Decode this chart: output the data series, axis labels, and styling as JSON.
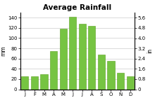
{
  "title": "Average Rainfall",
  "months": [
    "J",
    "F",
    "M",
    "A",
    "M",
    "J",
    "J",
    "A",
    "S",
    "O",
    "N",
    "D"
  ],
  "values_mm": [
    25,
    25,
    30,
    75,
    118,
    142,
    128,
    124,
    68,
    55,
    32,
    25
  ],
  "bar_color": "#76C442",
  "bar_edgecolor": "#5AA020",
  "ylabel_left": "mm",
  "ylabel_right": "in",
  "ylim_mm": [
    0,
    150
  ],
  "ylim_in": [
    0,
    6.0
  ],
  "yticks_mm": [
    0,
    20,
    40,
    60,
    80,
    100,
    120,
    140
  ],
  "yticks_in": [
    0,
    0.8,
    1.6,
    2.4,
    3.2,
    4.0,
    4.8,
    5.6
  ],
  "title_fontsize": 7.5,
  "label_fontsize": 5.0,
  "ylabel_fontsize": 5.5,
  "background_color": "#FFFFFF",
  "grid_color": "#CCCCCC"
}
